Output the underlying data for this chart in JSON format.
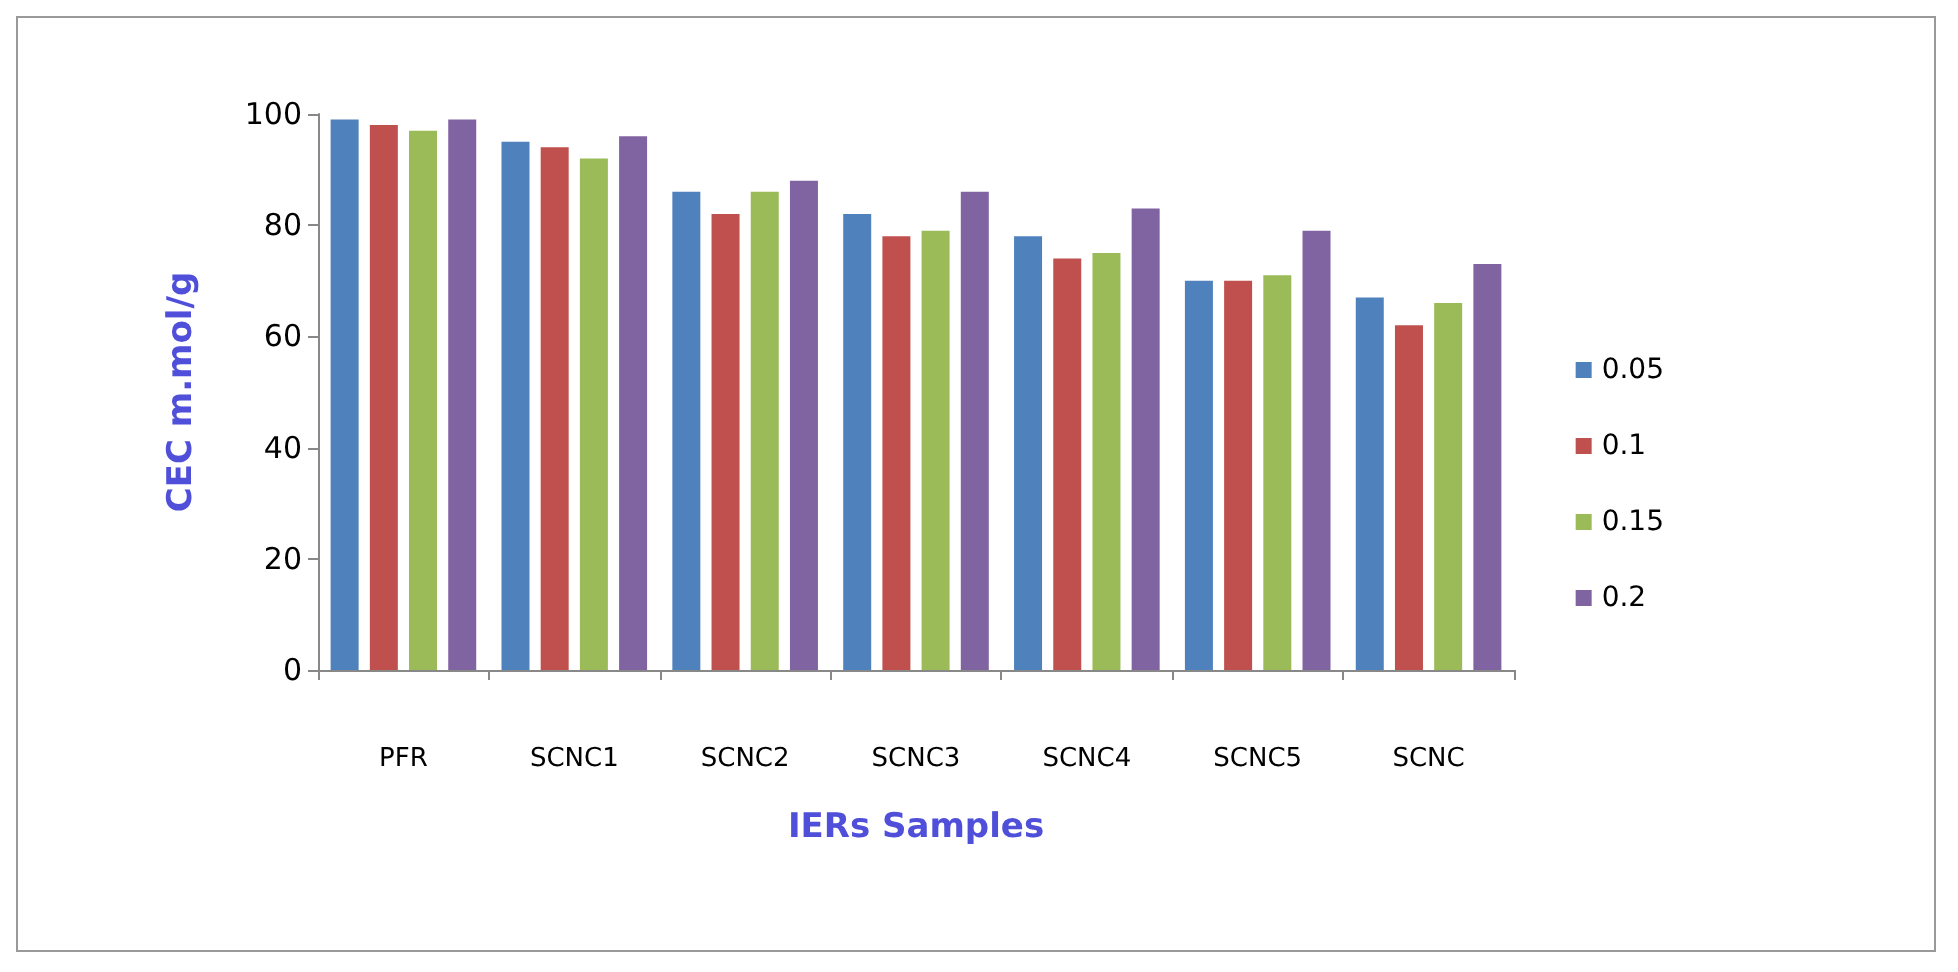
{
  "chart_data": {
    "type": "bar",
    "xlabel": "IERs Samples",
    "ylabel": "CEC m.mol/g",
    "categories": [
      "PFR",
      "SCNC1",
      "SCNC2",
      "SCNC3",
      "SCNC4",
      "SCNC5",
      "SCNC"
    ],
    "series": [
      {
        "name": "0.05",
        "color": "#4f81bd",
        "values": [
          99,
          95,
          86,
          82,
          78,
          70,
          67
        ]
      },
      {
        "name": "0.1",
        "color": "#c0504d",
        "values": [
          98,
          94,
          82,
          78,
          74,
          70,
          62
        ]
      },
      {
        "name": "0.15",
        "color": "#9bbb59",
        "values": [
          97,
          92,
          86,
          79,
          75,
          71,
          66
        ]
      },
      {
        "name": "0.2",
        "color": "#8064a2",
        "values": [
          99,
          96,
          88,
          86,
          83,
          79,
          73
        ]
      }
    ],
    "ylim": [
      0,
      100
    ],
    "yticks": [
      0,
      20,
      40,
      60,
      80,
      100
    ],
    "grid": false,
    "legend": "right"
  }
}
